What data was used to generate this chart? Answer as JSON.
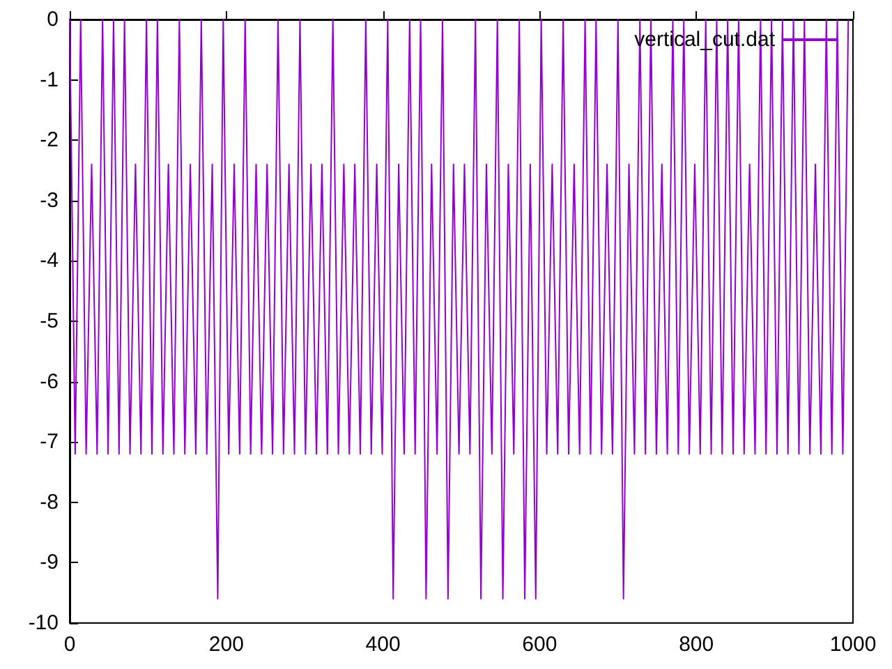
{
  "chart_data": {
    "type": "line",
    "legend": "top right",
    "grid": false,
    "marker": "none",
    "line_style": "solid",
    "xlim": [
      0,
      1000
    ],
    "xticks": [
      0,
      200,
      400,
      600,
      800,
      1000
    ],
    "ylim": [
      -10,
      0
    ],
    "yticks": [
      -10,
      -9,
      -8,
      -7,
      -6,
      -5,
      -4,
      -3,
      -2,
      -1,
      0
    ],
    "x": [
      0,
      7,
      14,
      21,
      28,
      35,
      42,
      49,
      56,
      63,
      70,
      77,
      84,
      91,
      98,
      105,
      112,
      119,
      126,
      133,
      140,
      147,
      154,
      161,
      168,
      175,
      182,
      189,
      196,
      203,
      210,
      217,
      224,
      231,
      238,
      245,
      252,
      259,
      266,
      273,
      280,
      287,
      294,
      301,
      308,
      315,
      322,
      329,
      336,
      343,
      350,
      357,
      364,
      371,
      378,
      385,
      392,
      399,
      406,
      413,
      420,
      427,
      434,
      441,
      448,
      455,
      462,
      469,
      476,
      483,
      490,
      497,
      504,
      511,
      518,
      525,
      532,
      539,
      546,
      553,
      560,
      567,
      574,
      581,
      588,
      595,
      602,
      609,
      616,
      623,
      630,
      637,
      644,
      651,
      658,
      665,
      672,
      679,
      686,
      693,
      700,
      707,
      714,
      721,
      728,
      735,
      742,
      749,
      756,
      763,
      770,
      777,
      784,
      791,
      798,
      805,
      812,
      819,
      826,
      833,
      840,
      847,
      854,
      861,
      868,
      875,
      882,
      889,
      896,
      903,
      910,
      917,
      924,
      931,
      938,
      945,
      952,
      959,
      966,
      973,
      980,
      987,
      994
    ],
    "series": [
      {
        "name": "vertical_cut.dat",
        "color": "#9400d3",
        "values": [
          0,
          -7.2,
          0,
          -7.2,
          -2.4,
          -7.2,
          0,
          -7.2,
          0,
          -7.2,
          0,
          -7.2,
          -2.4,
          -7.2,
          0,
          -7.2,
          0,
          -7.2,
          -2.4,
          -7.2,
          0,
          -7.2,
          -2.4,
          -7.2,
          0,
          -7.2,
          -2.4,
          -9.6,
          0,
          -7.2,
          -2.4,
          -7.2,
          0,
          -7.2,
          -2.4,
          -7.2,
          -2.4,
          -7.2,
          0,
          -7.2,
          -2.4,
          -7.2,
          0,
          -7.2,
          -2.4,
          -7.2,
          -2.4,
          -7.2,
          0,
          -7.2,
          -2.4,
          -7.2,
          -2.4,
          -7.2,
          0,
          -7.2,
          -2.4,
          -7.2,
          0,
          -9.6,
          -2.4,
          -7.2,
          0,
          -7.2,
          0,
          -9.6,
          -2.4,
          -7.2,
          0,
          -9.6,
          -2.4,
          -7.2,
          -2.4,
          -7.2,
          0,
          -9.6,
          -2.4,
          -7.2,
          0,
          -9.6,
          -2.4,
          -7.2,
          0,
          -9.6,
          -2.4,
          -9.6,
          0,
          -7.2,
          -2.4,
          -7.2,
          0,
          -7.2,
          -2.4,
          -7.2,
          0,
          -7.2,
          0,
          -7.2,
          -2.4,
          -7.2,
          0,
          -9.6,
          -2.4,
          -7.2,
          0,
          -7.2,
          0,
          -7.2,
          -2.4,
          -7.2,
          0,
          -7.2,
          0,
          -7.2,
          -2.4,
          -7.2,
          0,
          -7.2,
          0,
          -7.2,
          0,
          -7.2,
          0,
          -7.2,
          -2.4,
          -7.2,
          0,
          -7.2,
          0,
          -7.2,
          0,
          -7.2,
          0,
          -7.2,
          0,
          -7.2,
          -2.4,
          -7.2,
          0,
          -7.2,
          0,
          -7.2,
          0
        ]
      }
    ]
  }
}
